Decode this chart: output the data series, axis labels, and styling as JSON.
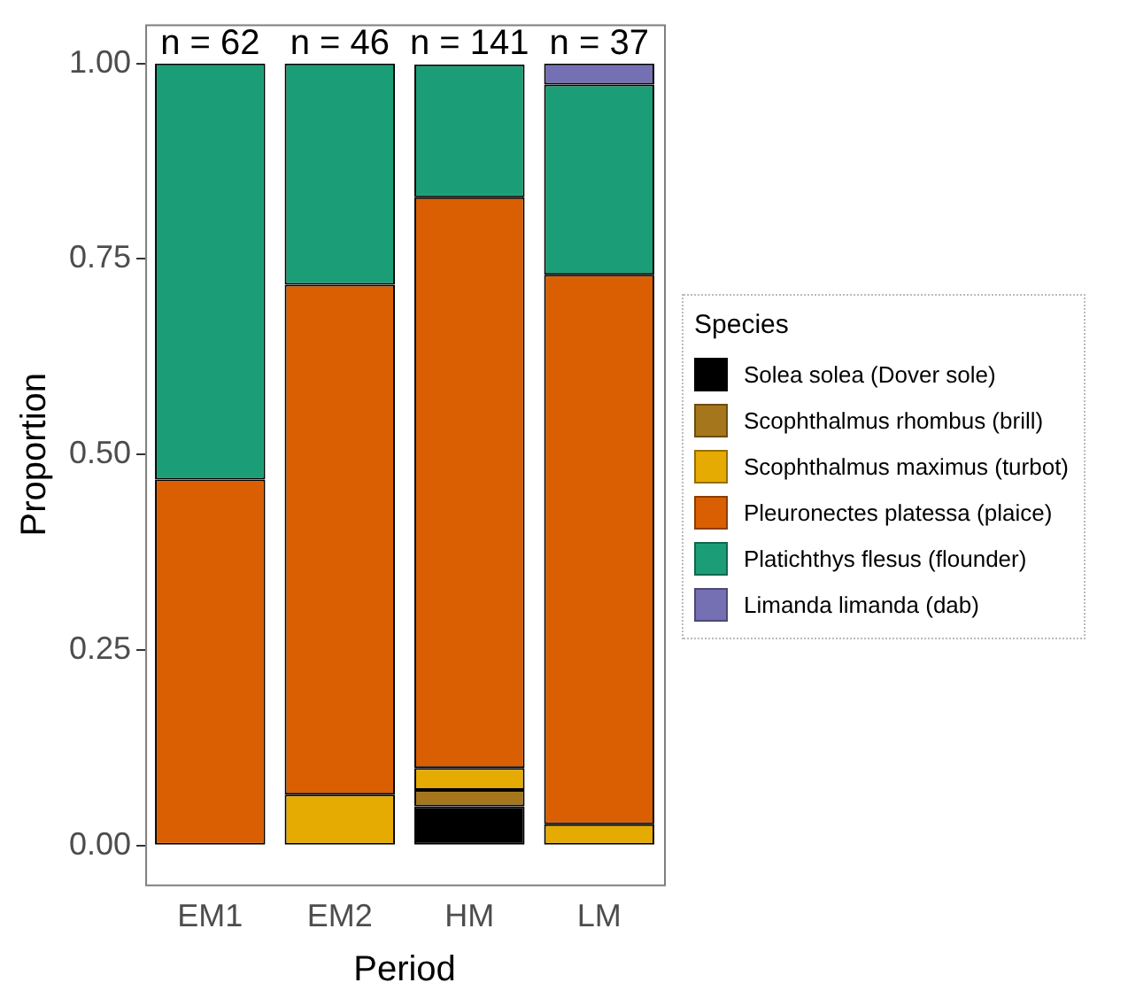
{
  "chart_data": {
    "type": "bar",
    "stacked": true,
    "categories": [
      "EM1",
      "EM2",
      "HM",
      "LM"
    ],
    "xlabel": "Period",
    "ylabel": "Proportion",
    "legend_title": "Species",
    "legend": "right",
    "grid": false,
    "ylim": [
      -0.05,
      1.05
    ],
    "yticks": [
      {
        "value": 0,
        "label": "0.00"
      },
      {
        "value": 0.25,
        "label": "0.25"
      },
      {
        "value": 0.5,
        "label": "0.50"
      },
      {
        "value": 0.75,
        "label": "0.75"
      },
      {
        "value": 1,
        "label": "1.00"
      }
    ],
    "series": [
      {
        "name": "Solea solea (Dover sole)",
        "color": "#000000",
        "values": [
          null,
          null,
          0.05,
          null
        ]
      },
      {
        "name": "Scophthalmus rhombus (brill)",
        "color": "#a6761d",
        "values": [
          null,
          null,
          0.021,
          null
        ]
      },
      {
        "name": "Scophthalmus maximus (turbot)",
        "color": "#e6ab02",
        "values": [
          null,
          0.065,
          0.028,
          0.027
        ]
      },
      {
        "name": "Pleuronectes platessa (plaice)",
        "color": "#d95f02",
        "values": [
          0.468,
          0.652,
          0.73,
          0.703
        ]
      },
      {
        "name": "Platichthys flesus (flounder)",
        "color": "#1b9e77",
        "values": [
          0.532,
          0.283,
          0.17,
          0.243
        ]
      },
      {
        "name": "Limanda limanda (dab)",
        "color": "#7570b3",
        "values": [
          null,
          null,
          null,
          0.027
        ]
      }
    ],
    "annotations": [
      {
        "text": "n = 62",
        "x": "EM1",
        "y": 1
      },
      {
        "text": "n = 46",
        "x": "EM2",
        "y": 1
      },
      {
        "text": "n = 141",
        "x": "HM",
        "y": 1
      },
      {
        "text": "n = 37",
        "x": "LM",
        "y": 1
      }
    ]
  }
}
